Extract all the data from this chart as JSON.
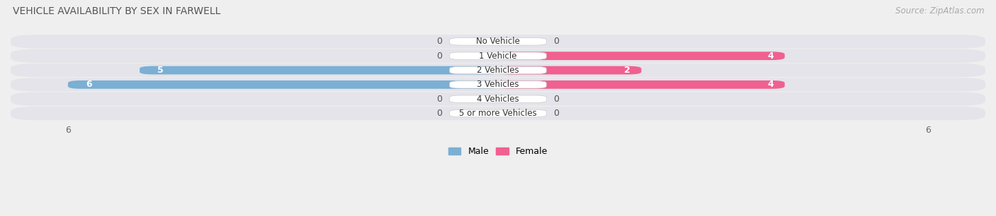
{
  "title": "VEHICLE AVAILABILITY BY SEX IN FARWELL",
  "source": "Source: ZipAtlas.com",
  "categories": [
    "No Vehicle",
    "1 Vehicle",
    "2 Vehicles",
    "3 Vehicles",
    "4 Vehicles",
    "5 or more Vehicles"
  ],
  "male_values": [
    0,
    0,
    5,
    6,
    0,
    0
  ],
  "female_values": [
    0,
    4,
    2,
    4,
    0,
    0
  ],
  "male_color": "#7bafd4",
  "female_color": "#f06090",
  "male_label": "Male",
  "female_label": "Female",
  "xlim_left": -6.8,
  "xlim_right": 6.8,
  "background_color": "#efefef",
  "bar_bg_color": "#e4e4ea",
  "title_fontsize": 10,
  "source_fontsize": 8.5,
  "label_fontsize": 9,
  "value_fontsize": 9,
  "category_fontsize": 8.5
}
